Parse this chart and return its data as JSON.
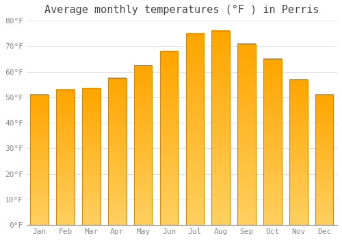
{
  "title": "Average monthly temperatures (°F ) in Perris",
  "months": [
    "Jan",
    "Feb",
    "Mar",
    "Apr",
    "May",
    "Jun",
    "Jul",
    "Aug",
    "Sep",
    "Oct",
    "Nov",
    "Dec"
  ],
  "values": [
    51,
    53,
    53.5,
    57.5,
    62.5,
    68,
    75,
    76,
    71,
    65,
    57,
    51
  ],
  "bar_color_top": "#FFA500",
  "bar_color_bottom": "#FFD060",
  "bar_edge_color": "#CC8800",
  "background_color": "#FFFFFF",
  "grid_color": "#DDDDDD",
  "text_color": "#888888",
  "title_color": "#444444",
  "ylim": [
    0,
    80
  ],
  "ytick_step": 10,
  "title_fontsize": 11,
  "tick_fontsize": 8,
  "bar_width": 0.7
}
